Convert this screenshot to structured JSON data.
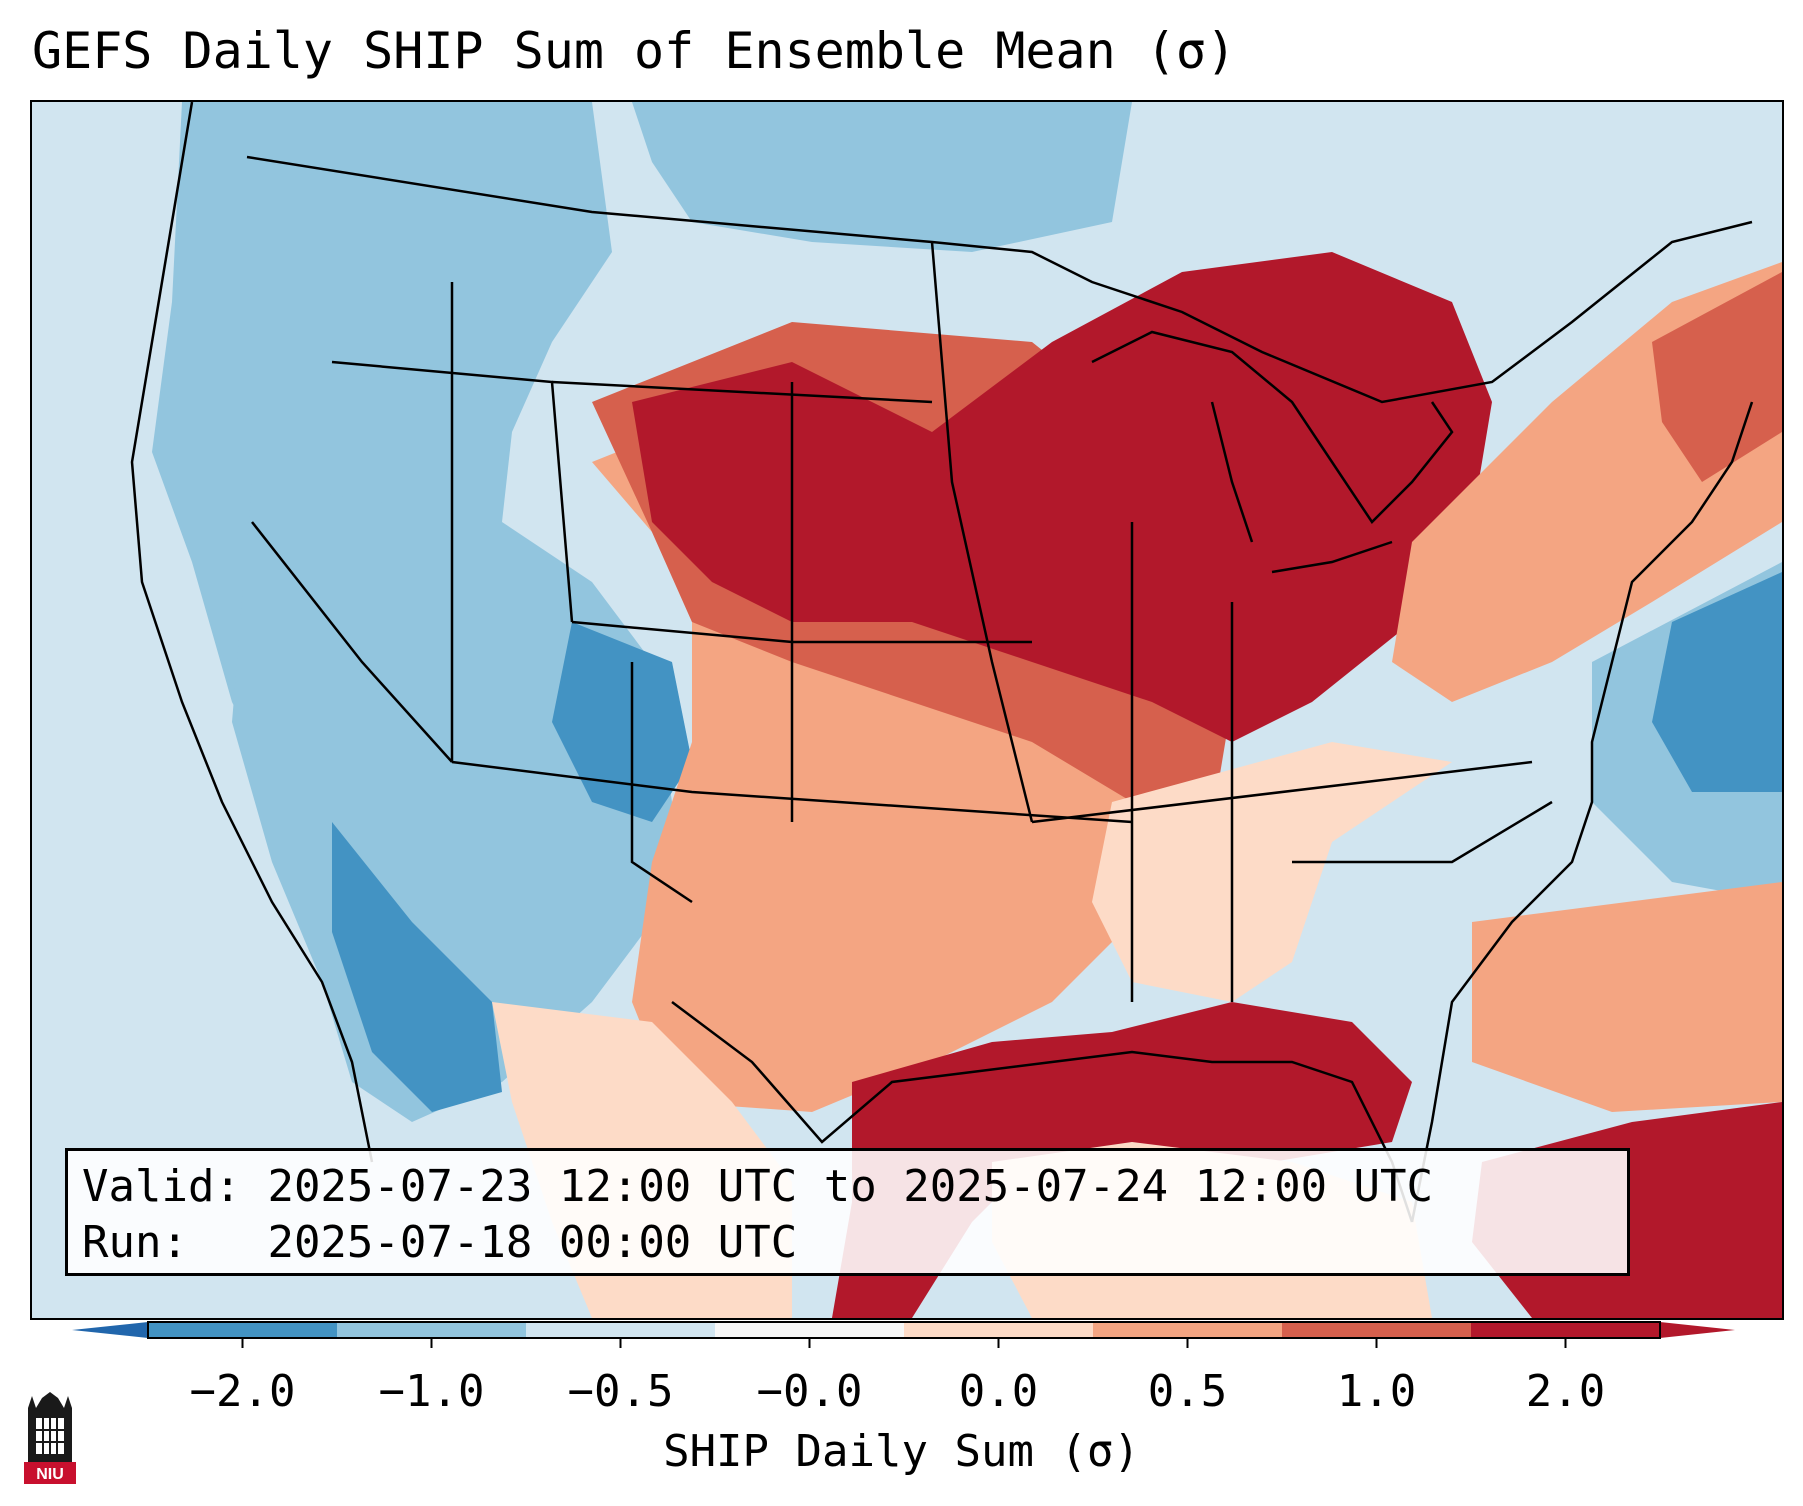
{
  "title": "GEFS Daily SHIP Sum of Ensemble Mean (σ)",
  "info": {
    "valid_label": "Valid:",
    "valid_value": "2025-07-23 12:00 UTC to 2025-07-24 12:00 UTC",
    "run_label": "Run:",
    "run_value": "2025-07-18 00:00 UTC"
  },
  "colorbar": {
    "label": "SHIP Daily Sum (σ)",
    "ticks": [
      "−2.0",
      "−1.0",
      "−0.5",
      "−0.0",
      "0.0",
      "0.5",
      "1.0",
      "2.0"
    ],
    "colors": [
      "#4393c3",
      "#92c5de",
      "#d1e5f0",
      "#f7f7f7",
      "#fddbc7",
      "#f4a582",
      "#d6604d",
      "#b2182b"
    ],
    "extend_low_color": "#2166ac",
    "extend_high_color": "#b2182b"
  },
  "logo": {
    "text": "NIU",
    "icon": "niu-tower-logo-icon"
  },
  "map_regions": [
    {
      "name": "pacific-northwest",
      "level": "negative-weak"
    },
    {
      "name": "great-basin",
      "level": "negative-moderate"
    },
    {
      "name": "four-corners",
      "level": "negative-strong"
    },
    {
      "name": "northern-plains-upper-midwest-great-lakes",
      "level": "positive-strong"
    },
    {
      "name": "central-southern-plains",
      "level": "positive-moderate"
    },
    {
      "name": "southeast-coast",
      "level": "neutral"
    },
    {
      "name": "gulf-of-mexico",
      "level": "positive-strong"
    },
    {
      "name": "western-atlantic",
      "level": "negative-strong"
    },
    {
      "name": "caribbean",
      "level": "positive-strong"
    }
  ]
}
